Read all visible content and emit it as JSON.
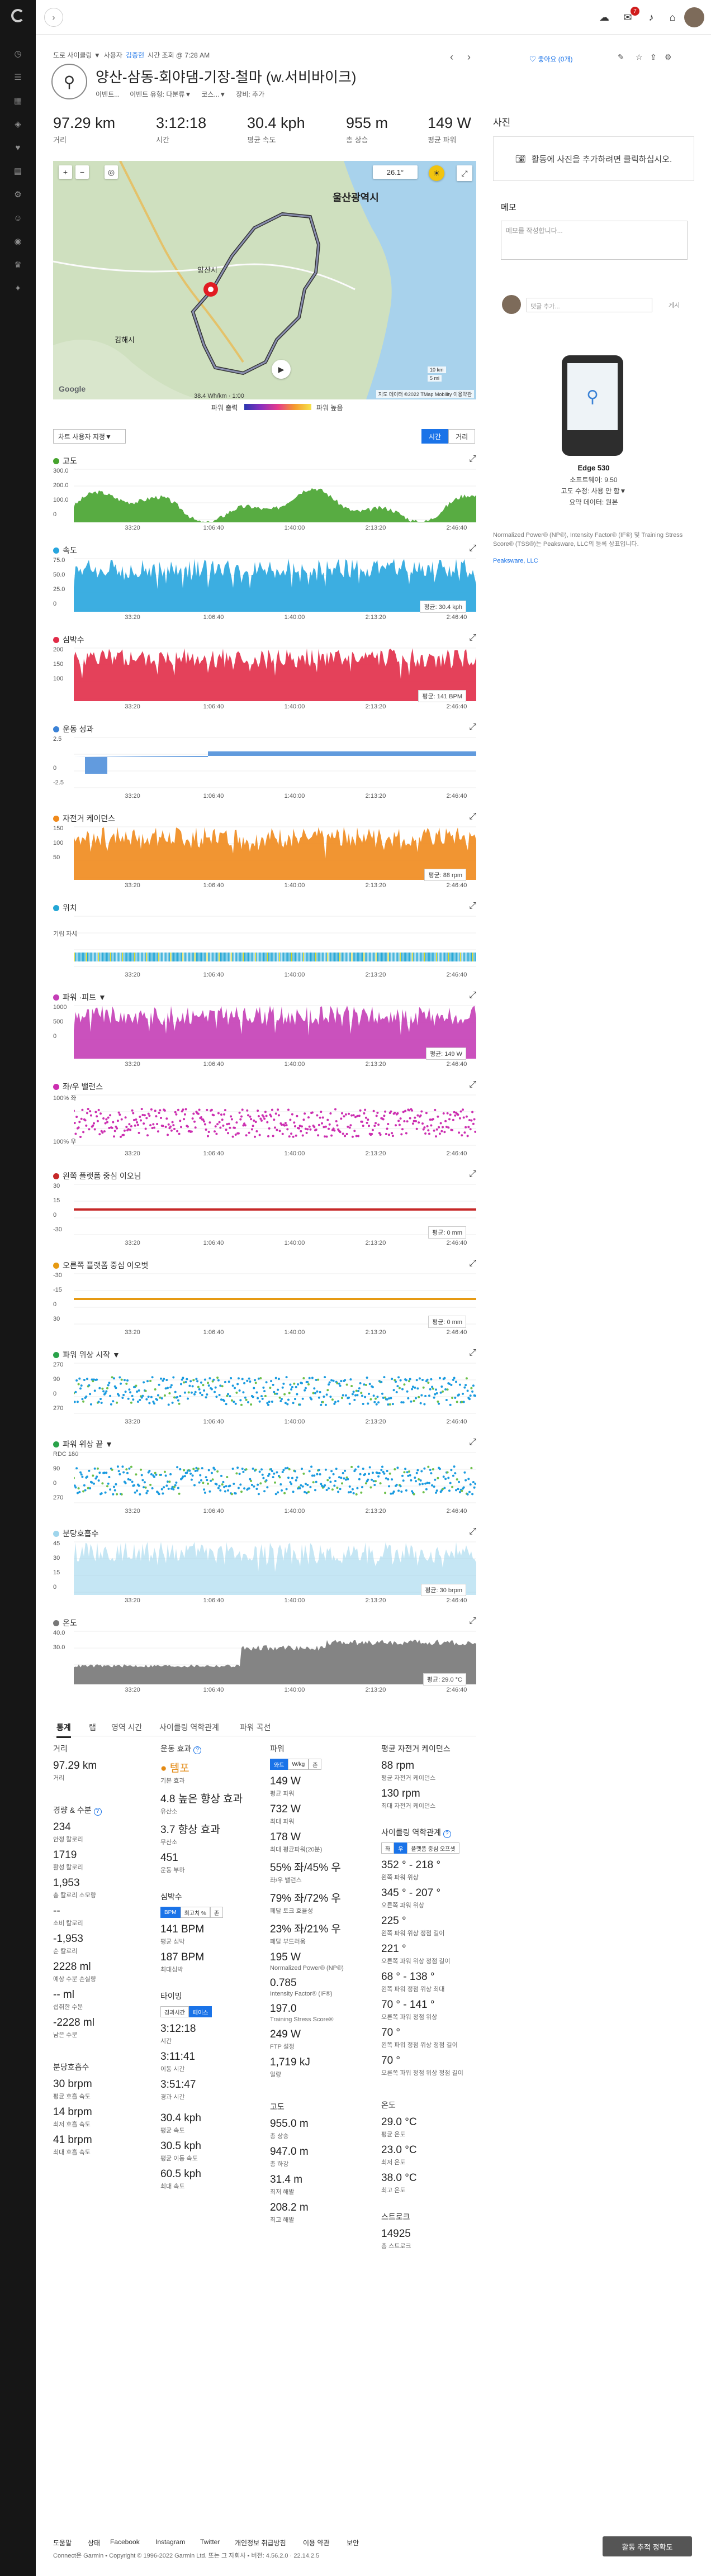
{
  "app": {
    "search_label": "검색"
  },
  "nav": {
    "icons": [
      "dashboard-icon",
      "list-icon",
      "calendar-icon",
      "training-icon",
      "heart-icon",
      "chart-icon",
      "gear-icon",
      "people-icon",
      "badge-icon",
      "trophy-icon",
      "settings-icon"
    ]
  },
  "topbar": {
    "notif_count": "7"
  },
  "breadcrumb": {
    "activity_type": "도로 사이클링 ▼",
    "by_prefix": "사용자",
    "user": "김종현",
    "time": "시간 조회 @ 7:28 AM"
  },
  "activity": {
    "title": "양산-삼동-회야댐-기장-철마 (w.서비바이크)",
    "meta": [
      "이벤트...",
      "이벤트 유형: 다분류▼",
      "코스...▼",
      "장비: 추가"
    ],
    "stats": [
      {
        "value": "97.29 km",
        "label": "거리"
      },
      {
        "value": "3:12:18",
        "label": "시간"
      },
      {
        "value": "30.4 kph",
        "label": "평균 속도"
      },
      {
        "value": "955 m",
        "label": "총 상승"
      },
      {
        "value": "149 W",
        "label": "평균 파워"
      }
    ],
    "like": "좋아요 (0개)"
  },
  "map": {
    "temp": "26.1°",
    "city_labels": [
      "울산광역시",
      "양산시",
      "김해시"
    ],
    "scale": [
      "10 km",
      "5 mi"
    ],
    "attribution": "지도 데이터 ©2022 TMap Mobility  이용약관",
    "legend_left": "파워 출력",
    "legend_right": "파워 높음",
    "google": "Google",
    "elevation_readout": "38.4 Wh/km  ·  1:00"
  },
  "chart_controls": {
    "settings": "차트 사용자 지정▼",
    "time_tab": "시간",
    "dist_tab": "거리"
  },
  "x_ticks": [
    "33:20",
    "1:06:40",
    "1:40:00",
    "2:13:20",
    "2:46:40"
  ],
  "charts": [
    {
      "title": "고도",
      "color": "#46a32d",
      "ymax": "300.0",
      "ymid": "200.0",
      "ylow": "100.0",
      "ybase": "0",
      "avg": ""
    },
    {
      "title": "속도",
      "color": "#27a5de",
      "ymax": "75.0",
      "ymid": "50.0",
      "ylow": "25.0",
      "ybase": "0",
      "avg": "평균: 30.4 kph"
    },
    {
      "title": "심박수",
      "color": "#e12c48",
      "ymax": "200",
      "ymid": "150",
      "ylow": "100",
      "ybase": "",
      "avg": "평균: 141 BPM"
    },
    {
      "title": "운동 성과",
      "color": "#3b82d6",
      "ymax": "2.5",
      "ymid": "",
      "ylow": "0",
      "ybase": "-2.5",
      "avg": ""
    },
    {
      "title": "자전거 케이던스",
      "color": "#f08a1c",
      "ymax": "150",
      "ymid": "100",
      "ylow": "50",
      "ybase": "",
      "avg": "평균: 88 rpm"
    },
    {
      "title": "위치",
      "color": "#23a6d5",
      "ymax": "",
      "ymid": "기립 자세",
      "ylow": "",
      "ybase": "",
      "avg": ""
    },
    {
      "title": "파워 ·피트 ▼",
      "color": "#c43eb6",
      "ymax": "1000",
      "ymid": "500",
      "ylow": "0",
      "ybase": "",
      "avg": "평균: 149 W"
    },
    {
      "title": "좌/우 밸런스",
      "color": "#cc2eb0",
      "ymax": "100% 좌",
      "ymid": "",
      "ylow": "",
      "ybase": "100% 우",
      "avg": ""
    },
    {
      "title": "왼쪽 플랫폼 중심 이오님",
      "color": "#c62828",
      "ymax": "30",
      "ymid": "15",
      "ylow": "0",
      "ybase": "-30",
      "avg": "평균: 0 mm"
    },
    {
      "title": "오른쪽 플랫폼 중심 이오벗",
      "color": "#e69a13",
      "ymax": "-30",
      "ymid": "-15",
      "ylow": "0",
      "ybase": "30",
      "avg": "평균: 0 mm"
    },
    {
      "title": "파워 위상 시작 ▼",
      "color": "#2aa34a",
      "ymax": "270",
      "ymid": "90",
      "ylow": "0",
      "ybase": "270",
      "avg": ""
    },
    {
      "title": "파워 위상 끝 ▼",
      "color": "#2aa34a",
      "ymax": "RDC 180",
      "ymid": "90",
      "ylow": "0",
      "ybase": "270",
      "avg": ""
    },
    {
      "title": "분당호흡수",
      "color": "#9fd5ec",
      "ymax": "45",
      "ymid": "30",
      "ylow": "15",
      "ybase": "0",
      "avg": "평균: 30 brpm"
    },
    {
      "title": "온도",
      "color": "#777777",
      "ymax": "40.0",
      "ymid": "30.0",
      "ylow": "",
      "ybase": "",
      "avg": "평균: 29.0 °C"
    }
  ],
  "stats_tabs": [
    "통계",
    "랩",
    "영역 시간",
    "사이클링 역학관계",
    "파워 곡선"
  ],
  "stats": {
    "col1": {
      "distance": {
        "value": "97.29 km",
        "label": "거리"
      },
      "elev_head": "경량 & 수분",
      "elev": [
        {
          "v": "234",
          "l": "안정 칼로리"
        },
        {
          "v": "1719",
          "l": "활성 칼로리"
        },
        {
          "v": "1,953",
          "l": "총 칼로리 소모량"
        },
        {
          "v": "--",
          "l": "소비 칼로리"
        },
        {
          "v": "-1,953",
          "l": "순 칼로리"
        },
        {
          "v": "2228 ml",
          "l": "예상 수분 손실량"
        },
        {
          "v": "-- ml",
          "l": "섭취한 수분"
        },
        {
          "v": "-2228 ml",
          "l": "남은 수분"
        }
      ],
      "resp_head": "분당호흡수",
      "resp": [
        {
          "v": "30 brpm",
          "l": "평균 호흡 속도"
        },
        {
          "v": "14 brpm",
          "l": "최저 호흡 속도"
        },
        {
          "v": "41 brpm",
          "l": "최대 호흡 속도"
        }
      ]
    },
    "col2": {
      "effect_head": "운동 효과",
      "tempo": "● 템포",
      "tempo_l": "기본 효과",
      "eff": [
        {
          "v": "4.8 높은 향상 효과",
          "l": "유산소"
        },
        {
          "v": "3.7 향상 효과",
          "l": "무산소"
        },
        {
          "v": "451",
          "l": "운동 부하"
        }
      ],
      "hr_head": "심박수",
      "hr_tabs": [
        "BPM",
        "최고치 %",
        "존"
      ],
      "hr": [
        {
          "v": "141 BPM",
          "l": "평균 심박"
        },
        {
          "v": "187 BPM",
          "l": "최대심박"
        }
      ],
      "time_head": "타이밍",
      "time_tabs": [
        "경과시간",
        "페이스"
      ],
      "time": [
        {
          "v": "3:12:18",
          "l": "시간"
        },
        {
          "v": "3:11:41",
          "l": "이동 시간"
        },
        {
          "v": "3:51:47",
          "l": "경과 시간"
        }
      ],
      "speed": [
        {
          "v": "30.4 kph",
          "l": "평균 속도"
        },
        {
          "v": "30.5 kph",
          "l": "평균 이동 속도"
        },
        {
          "v": "60.5 kph",
          "l": "최대 속도"
        }
      ]
    },
    "col3": {
      "power_head": "파워",
      "power_tabs": [
        "와트",
        "W/kg",
        "존"
      ],
      "power": [
        {
          "v": "149 W",
          "l": "평균 파워"
        },
        {
          "v": "732 W",
          "l": "최대 파워"
        },
        {
          "v": "178 W",
          "l": "최대 평균파워(20분)"
        },
        {
          "v": "55% 좌/45% 우",
          "l": "좌/우 밸런스"
        },
        {
          "v": "79% 좌/72% 우",
          "l": "페달 토크 효율성"
        },
        {
          "v": "23% 좌/21% 우",
          "l": "페달 부드러움"
        },
        {
          "v": "195 W",
          "l": "Normalized Power® (NP®)"
        },
        {
          "v": "0.785",
          "l": "Intensity Factor® (IF®)"
        },
        {
          "v": "197.0",
          "l": "Training Stress Score®"
        },
        {
          "v": "249 W",
          "l": "FTP 설정"
        },
        {
          "v": "1,719 kJ",
          "l": "일량"
        }
      ],
      "elev_head": "고도",
      "elev": [
        {
          "v": "955.0 m",
          "l": "총 상승"
        },
        {
          "v": "947.0 m",
          "l": "총 하강"
        },
        {
          "v": "31.4 m",
          "l": "최저 해발"
        },
        {
          "v": "208.2 m",
          "l": "최고 해발"
        }
      ]
    },
    "col4": {
      "cad": [
        {
          "v": "88 rpm",
          "l": "평균 자전거 케이던스"
        },
        {
          "v": "130 rpm",
          "l": "최대 자전거 케이던스"
        }
      ],
      "dyn_head": "사이클링 역학관계",
      "dyn_tabs": [
        "좌",
        "우",
        "플랫폼 중심 오프셋"
      ],
      "dyn": [
        {
          "v": "352 ° - 218 °",
          "l": "왼쪽 파워 위상"
        },
        {
          "v": "345 ° - 207 °",
          "l": "오른쪽 파워 위상"
        },
        {
          "v": "225 °",
          "l": "왼쪽 파워 위상 정점 길이"
        },
        {
          "v": "221 °",
          "l": "오른쪽 파워 위상 정점 길이"
        },
        {
          "v": "68 ° - 138 °",
          "l": "왼쪽 파워 정점 위상 최대"
        },
        {
          "v": "70 ° - 141 °",
          "l": "오른쪽 파워 정점 위상"
        },
        {
          "v": "70 °",
          "l": "왼쪽 파워 정점 위상 정점 길이"
        },
        {
          "v": "70 °",
          "l": "오른쪽 파워 정점 위상 정점 길이"
        }
      ],
      "temp_head": "온도",
      "temp": [
        {
          "v": "29.0 °C",
          "l": "평균 온도"
        },
        {
          "v": "23.0 °C",
          "l": "최저 온도"
        },
        {
          "v": "38.0 °C",
          "l": "최고 온도"
        }
      ],
      "step_head": "스트로크",
      "step": [
        {
          "v": "14925",
          "l": "총 스트로크"
        }
      ]
    }
  },
  "right": {
    "photo_head": "사진",
    "photo_text": "활동에 사진을 추가하려면 클릭하십시오.",
    "memo_head": "메모",
    "memo_placeholder": "메모를 작성합니다...",
    "comment_placeholder": "댓글 추가...",
    "comment_btn": "게시",
    "device_name": "Edge 530",
    "device_sw": "소프트웨어: 9.50",
    "device_elev": "고도 수정: 사용 안 함▼",
    "device_data": "요약 데이터: 원본",
    "note": "Normalized Power® (NP®), Intensity Factor® (IF®) 및 Training Stress Score® (TSS®)는 Peaksware, LLC의 등록 상표입니다.",
    "note_link": "Peaksware, LLC"
  },
  "footer": {
    "links": [
      "도움말",
      "상태",
      "Facebook",
      "Instagram",
      "Twitter",
      "개인정보 취급방침",
      "이용 약관",
      "보안"
    ],
    "copyright": "Connect은 Garmin • Copyright © 1996-2022 Garmin Ltd. 또는 그 자회사 • 버전: 4.56.2.0 · 22.14.2.5",
    "feedback": "활동 추적 정확도"
  }
}
